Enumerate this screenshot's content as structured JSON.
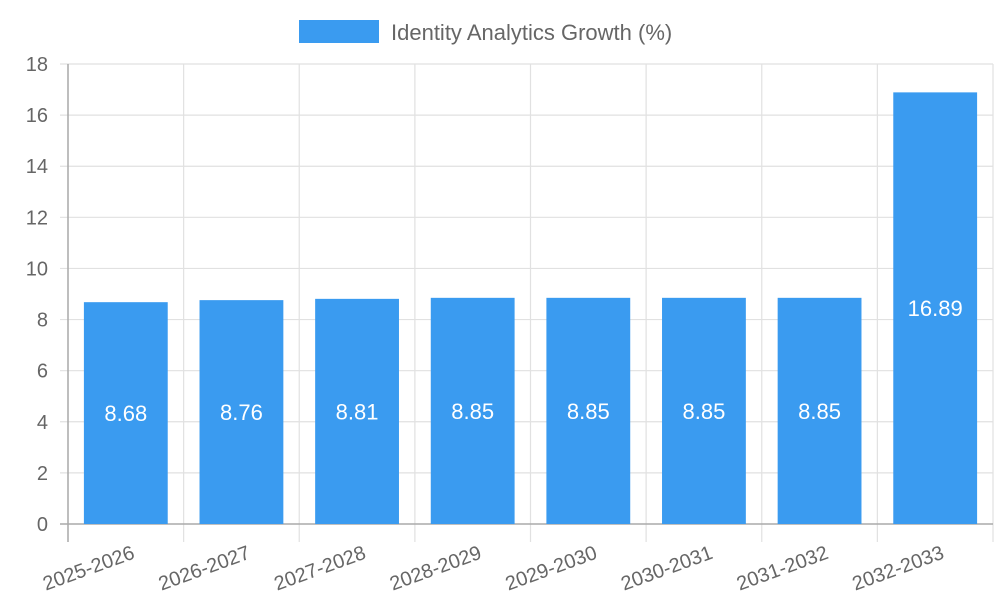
{
  "chart_data": {
    "type": "bar",
    "title": "",
    "legend": {
      "position": "top",
      "entries": [
        {
          "label": "Identity Analytics Growth (%)",
          "color": "#3a9bf0"
        }
      ]
    },
    "categories": [
      "2025-2026",
      "2026-2027",
      "2027-2028",
      "2028-2029",
      "2029-2030",
      "2030-2031",
      "2031-2032",
      "2032-2033"
    ],
    "series": [
      {
        "name": "Identity Analytics Growth (%)",
        "color": "#3a9bf0",
        "values": [
          8.68,
          8.76,
          8.81,
          8.85,
          8.85,
          8.85,
          8.85,
          16.89
        ]
      }
    ],
    "data_labels": [
      "8.68",
      "8.76",
      "8.81",
      "8.85",
      "8.85",
      "8.85",
      "8.85",
      "16.89"
    ],
    "xlabel": "",
    "ylabel": "",
    "ylim": [
      0,
      18
    ],
    "yticks": [
      "0",
      "2",
      "4",
      "6",
      "8",
      "10",
      "12",
      "14",
      "16",
      "18"
    ],
    "grid": true,
    "xtick_rotation": -20
  }
}
